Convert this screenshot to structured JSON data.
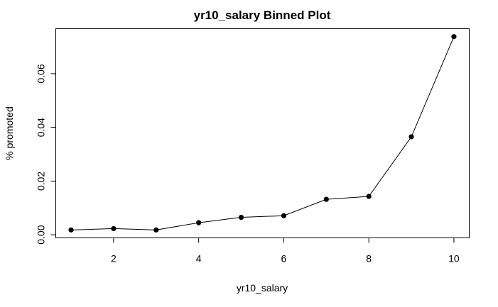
{
  "chart_data": {
    "type": "line",
    "title": "yr10_salary Binned Plot",
    "xlabel": "yr10_salary",
    "ylabel": "% promoted",
    "x": [
      1,
      2,
      3,
      4,
      5,
      6,
      7,
      8,
      9,
      10
    ],
    "series": [
      {
        "values": [
          0.0018,
          0.0023,
          0.0018,
          0.0045,
          0.0065,
          0.0071,
          0.0132,
          0.0143,
          0.0365,
          0.0738
        ]
      }
    ],
    "xticks": [
      2,
      4,
      6,
      8,
      10
    ],
    "xtick_labels": [
      "2",
      "4",
      "6",
      "8",
      "10"
    ],
    "yticks": [
      0.0,
      0.02,
      0.04,
      0.06
    ],
    "ytick_labels": [
      "0.00",
      "0.02",
      "0.04",
      "0.06"
    ],
    "xlim": [
      0.64,
      10.36
    ],
    "ylim": [
      -0.00115,
      0.07675
    ],
    "grid": false,
    "legend": "none"
  }
}
